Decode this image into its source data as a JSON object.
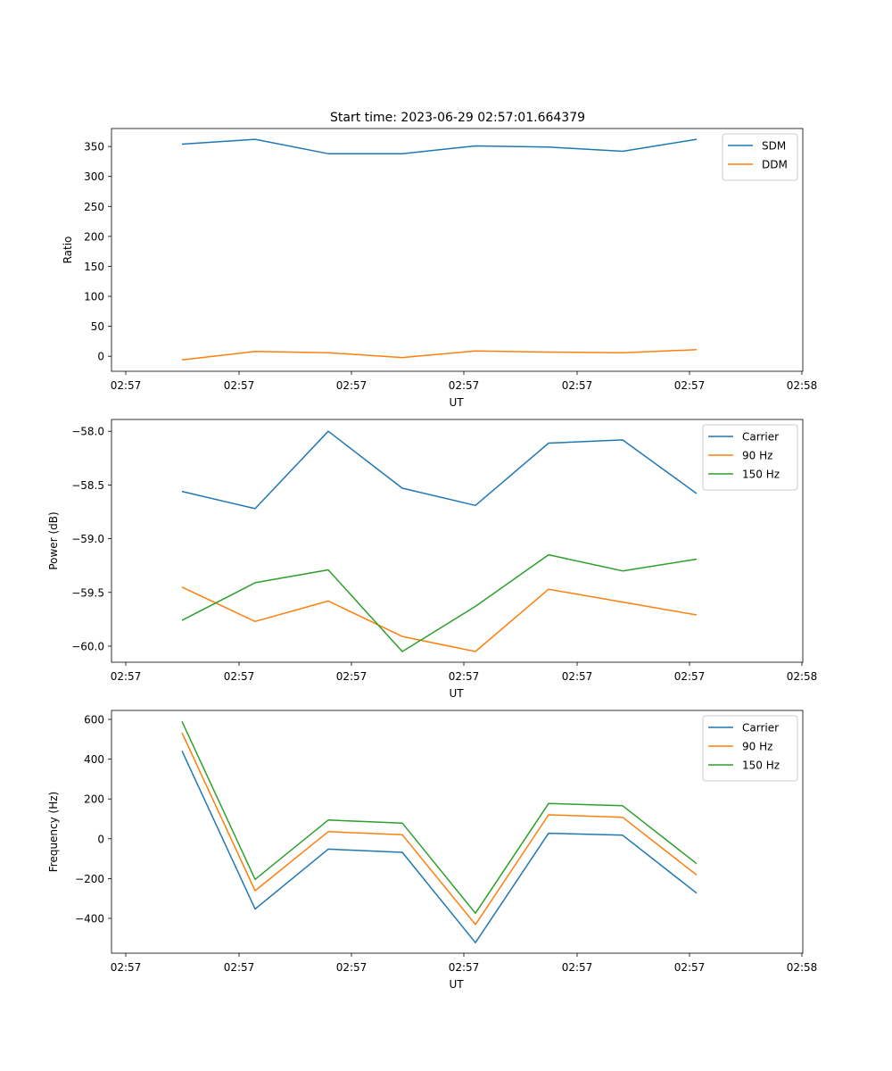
{
  "title": "Start time: 2023-06-29 02:57:01.664379",
  "colors": {
    "blue": "#1f77b4",
    "orange": "#ff7f0e",
    "green": "#2ca02c"
  },
  "chart_data": [
    {
      "type": "line",
      "xlabel": "UT",
      "ylabel": "Ratio",
      "x_tick_labels": [
        "02:57",
        "02:57",
        "02:57",
        "02:57",
        "02:57",
        "02:57",
        "02:57",
        "02:58"
      ],
      "y_ticks": [
        0,
        50,
        100,
        150,
        200,
        250,
        300,
        350
      ],
      "ylim": [
        -25,
        380
      ],
      "legend": "top-right",
      "series": [
        {
          "name": "SDM",
          "color": "#1f77b4",
          "values": [
            354,
            362,
            338,
            338,
            351,
            349,
            342,
            362
          ]
        },
        {
          "name": "DDM",
          "color": "#ff7f0e",
          "values": [
            -6,
            8,
            6,
            -2,
            9,
            7,
            6,
            11
          ]
        }
      ]
    },
    {
      "type": "line",
      "xlabel": "UT",
      "ylabel": "Power (dB)",
      "x_tick_labels": [
        "02:57",
        "02:57",
        "02:57",
        "02:57",
        "02:57",
        "02:57",
        "02:57",
        "02:58"
      ],
      "y_ticks": [
        -60.0,
        -59.5,
        -59.0,
        -58.5,
        -58.0
      ],
      "y_tick_labels": [
        "−60.0",
        "−59.5",
        "−59.0",
        "−58.5",
        "−58.0"
      ],
      "ylim": [
        -60.15,
        -57.89
      ],
      "legend": "top-right",
      "series": [
        {
          "name": "Carrier",
          "color": "#1f77b4",
          "values": [
            -58.56,
            -58.72,
            -58.0,
            -58.53,
            -58.69,
            -58.11,
            -58.08,
            -58.58
          ]
        },
        {
          "name": "90 Hz",
          "color": "#ff7f0e",
          "values": [
            -59.45,
            -59.77,
            -59.58,
            -59.91,
            -60.05,
            -59.47,
            -59.59,
            -59.71
          ]
        },
        {
          "name": "150 Hz",
          "color": "#2ca02c",
          "values": [
            -59.76,
            -59.41,
            -59.29,
            -60.05,
            -59.63,
            -59.15,
            -59.3,
            -59.19
          ]
        }
      ]
    },
    {
      "type": "line",
      "xlabel": "UT",
      "ylabel": "Frequency (Hz)",
      "x_tick_labels": [
        "02:57",
        "02:57",
        "02:57",
        "02:57",
        "02:57",
        "02:57",
        "02:57",
        "02:58"
      ],
      "y_ticks": [
        -400,
        -200,
        0,
        200,
        400,
        600
      ],
      "y_tick_labels": [
        "−400",
        "−200",
        "0",
        "200",
        "400",
        "600"
      ],
      "ylim": [
        -575,
        645
      ],
      "legend": "top-right",
      "series": [
        {
          "name": "Carrier",
          "color": "#1f77b4",
          "values": [
            442,
            -353,
            -52,
            -68,
            -522,
            28,
            18,
            -273
          ]
        },
        {
          "name": "90 Hz",
          "color": "#ff7f0e",
          "values": [
            533,
            -261,
            36,
            20,
            -431,
            120,
            108,
            -182
          ]
        },
        {
          "name": "150 Hz",
          "color": "#2ca02c",
          "values": [
            590,
            -204,
            94,
            79,
            -374,
            177,
            166,
            -125
          ]
        }
      ]
    }
  ]
}
